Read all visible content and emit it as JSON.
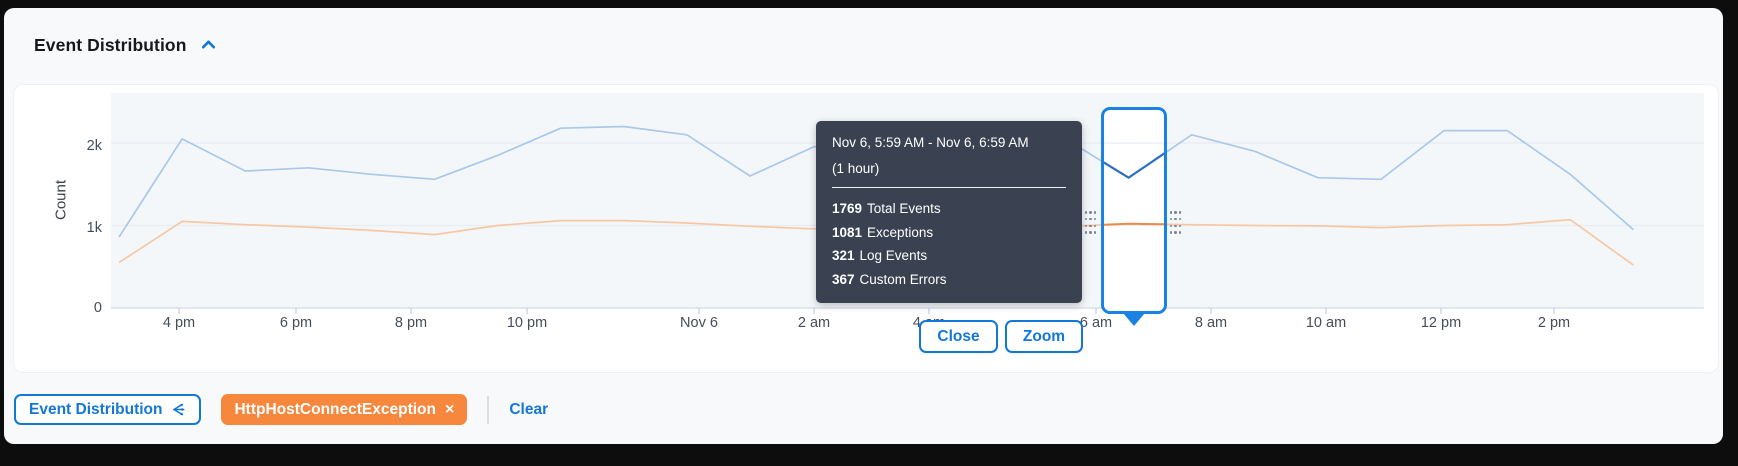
{
  "header": {
    "title": "Event Distribution",
    "collapse_icon": "chevron-up"
  },
  "chart_data": {
    "type": "line",
    "title": "Event Distribution",
    "ylabel": "Count",
    "y_ticks": [
      "0",
      "1k",
      "2k"
    ],
    "ylim": [
      0,
      2600
    ],
    "grid": "horizontal",
    "interval_per_point": "1 hour",
    "x_tick_labels": [
      "4 pm",
      "6 pm",
      "8 pm",
      "10 pm",
      "Nov 6",
      "2 am",
      "4 am",
      "6 am",
      "8 am",
      "10 am",
      "12 pm",
      "2 pm"
    ],
    "series": [
      {
        "name": "Total Events",
        "values": [
          860,
          2050,
          1660,
          1700,
          1620,
          1560,
          1850,
          2180,
          2200,
          2100,
          1600,
          1950,
          2100,
          2050,
          2100,
          2050,
          1580,
          2100,
          1900,
          1580,
          1560,
          2150,
          2150,
          1620,
          950
        ]
      },
      {
        "name": "Exceptions",
        "values": [
          550,
          1050,
          1010,
          980,
          940,
          890,
          1000,
          1060,
          1060,
          1030,
          990,
          960,
          1000,
          1010,
          1000,
          990,
          1020,
          1010,
          1000,
          995,
          975,
          1000,
          1010,
          1070,
          520
        ]
      }
    ],
    "legend_position": "none",
    "selected_range": "Nov 6, 5:59 AM - Nov 6, 6:59 AM"
  },
  "tooltip": {
    "title": "Nov 6, 5:59 AM - Nov 6, 6:59 AM",
    "subtitle": "(1 hour)",
    "rows": [
      {
        "value": "1769",
        "label": "Total Events"
      },
      {
        "value": "1081",
        "label": "Exceptions"
      },
      {
        "value": "321",
        "label": "Log Events"
      },
      {
        "value": "367",
        "label": "Custom Errors"
      }
    ]
  },
  "buttons": {
    "close": "Close",
    "zoom": "Zoom"
  },
  "filters": {
    "chip_primary": "Event Distribution",
    "chip_primary_icon": "share-icon",
    "chip_exception": "HttpHostConnectException",
    "chip_exception_close": "×",
    "clear": "Clear"
  },
  "colors": {
    "accent_blue": "#1377d6",
    "selection_blue": "#1a82e2",
    "chip_orange": "#f6873c",
    "tooltip_bg": "#3a4150",
    "line_total_light": "#a9c8ea",
    "line_total_active": "#2d6fc0",
    "line_exceptions_light": "#f7c7a3",
    "line_exceptions_active": "#ee8a45",
    "plot_bg": "#f4f7fa",
    "gridline": "#e8ecf3",
    "axis_line": "#d9e0ea"
  }
}
